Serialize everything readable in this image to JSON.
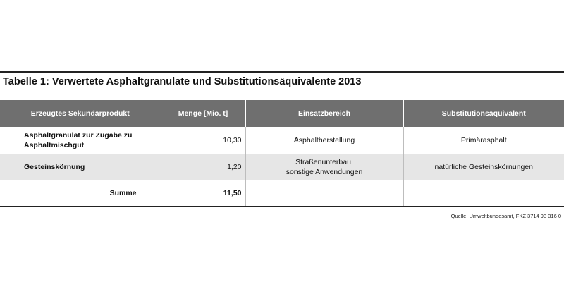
{
  "title": "Tabelle 1: Verwertete Asphaltgranulate und Substitutionsäquivalente 2013",
  "columns": [
    "Erzeugtes Sekundärprodukt",
    "Menge [Mio. t]",
    "Einsatzbereich",
    "Substitutionsäquivalent"
  ],
  "rows": [
    {
      "product_line1": "Asphaltgranulat zur Zugabe zu",
      "product_line2": "Asphaltmischgut",
      "quantity": "10,30",
      "area_line1": "Asphaltherstellung",
      "area_line2": "",
      "equivalent": "Primärasphalt"
    },
    {
      "product_line1": "Gesteinskörnung",
      "product_line2": "",
      "quantity": "1,20",
      "area_line1": "Straßenunterbau,",
      "area_line2": "sonstige Anwendungen",
      "equivalent": "natürliche Gesteinskörnungen"
    }
  ],
  "total": {
    "label": "Summe",
    "quantity": "11,50"
  },
  "source": "Quelle: Umweltbundesamt, FKZ  3714 93 316 0"
}
